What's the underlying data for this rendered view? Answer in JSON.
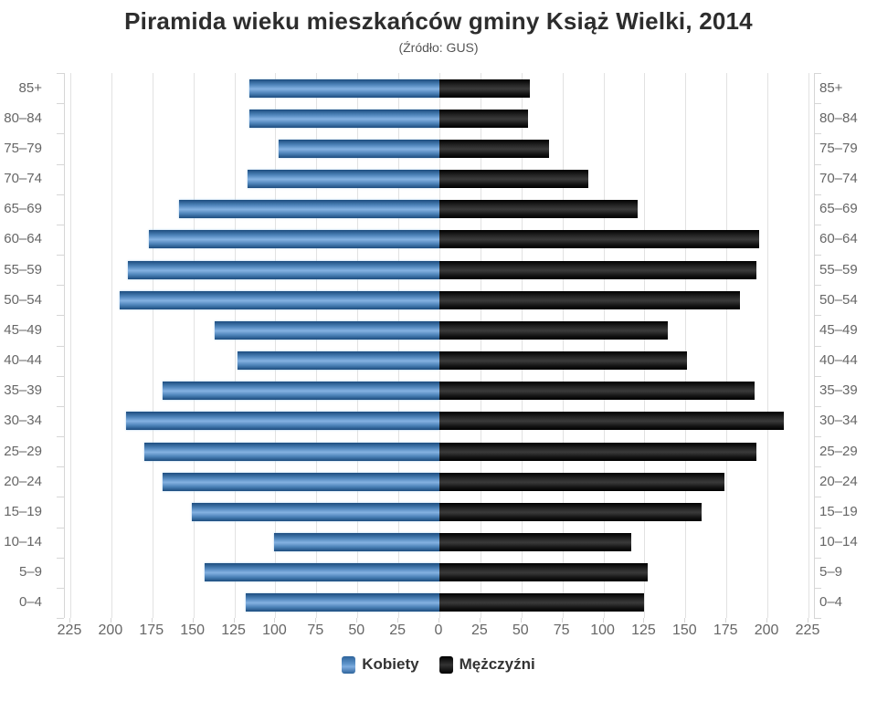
{
  "title": "Piramida wieku mieszkańców gminy Książ Wielki, 2014",
  "subtitle": "(Źródło: GUS)",
  "legend": {
    "items": [
      {
        "label": "Kobiety",
        "color": "#4c82b8"
      },
      {
        "label": "Mężczyźni",
        "color": "#1b1b1b"
      }
    ],
    "position": "bottom"
  },
  "chart_data": {
    "type": "bar",
    "variant": "population-pyramid",
    "orientation": "horizontal",
    "title": "Piramida wieku mieszkańców gminy Książ Wielki, 2014",
    "subtitle": "(Źródło: GUS)",
    "categories": [
      "85+",
      "80–84",
      "75–79",
      "70–74",
      "65–69",
      "60–64",
      "55–59",
      "50–54",
      "45–49",
      "40–44",
      "35–39",
      "30–34",
      "25–29",
      "20–24",
      "15–19",
      "10–14",
      "5–9",
      "0–4"
    ],
    "series": [
      {
        "name": "Kobiety",
        "side": "left",
        "color": "#4c82b8",
        "values": [
          116,
          116,
          98,
          117,
          159,
          177,
          190,
          195,
          137,
          123,
          169,
          191,
          180,
          169,
          151,
          101,
          143,
          118
        ]
      },
      {
        "name": "Mężczyźni",
        "side": "right",
        "color": "#1b1b1b",
        "values": [
          55,
          54,
          67,
          91,
          121,
          195,
          193,
          183,
          139,
          151,
          192,
          210,
          193,
          174,
          160,
          117,
          127,
          125
        ]
      }
    ],
    "axis_max": 225,
    "tick_interval": 25,
    "x_tick_labels": [
      "225",
      "200",
      "175",
      "150",
      "125",
      "100",
      "75",
      "50",
      "25",
      "0",
      "25",
      "50",
      "75",
      "100",
      "125",
      "150",
      "175",
      "200",
      "225"
    ],
    "xlabel": "",
    "ylabel": "",
    "grid": true,
    "legend_position": "bottom"
  }
}
